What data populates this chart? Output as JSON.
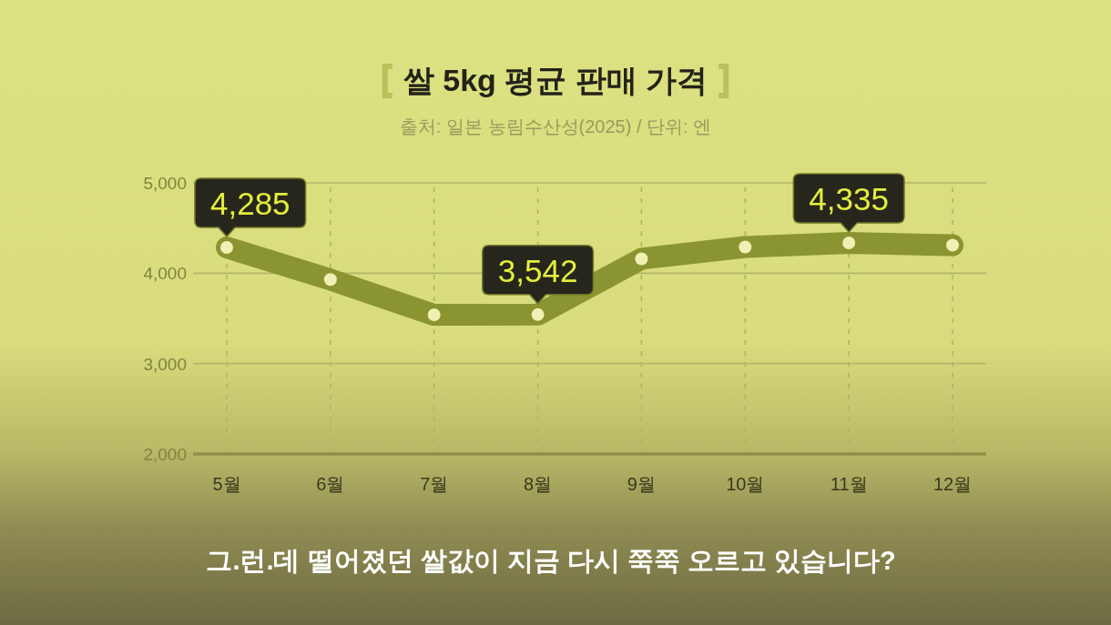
{
  "chart_data": {
    "type": "line",
    "title": "쌀 5kg 평균 판매 가격",
    "subtitle": "출처: 일본 농림수산성(2025) / 단위: 엔",
    "annotations": [
      "그.런.데 떨어졌던 쌀값이 지금 다시 쭉쭉 오르고 있습니다?"
    ],
    "categories": [
      "5월",
      "6월",
      "7월",
      "8월",
      "9월",
      "10월",
      "11월",
      "12월"
    ],
    "values": [
      4285,
      3930,
      3540,
      3542,
      4160,
      4290,
      4335,
      4310
    ],
    "value_labels": [
      "4,285",
      null,
      null,
      "3,542",
      null,
      null,
      "4,335",
      null
    ],
    "color": "#8a9430",
    "ylim": [
      2000,
      5000
    ],
    "yticks": [
      {
        "value": 2000,
        "label": "2,000"
      },
      {
        "value": 3000,
        "label": "3,000"
      },
      {
        "value": 4000,
        "label": "4,000"
      },
      {
        "value": 5000,
        "label": "5,000"
      }
    ],
    "grid": true,
    "marker": "circle",
    "line_style": "solid"
  }
}
